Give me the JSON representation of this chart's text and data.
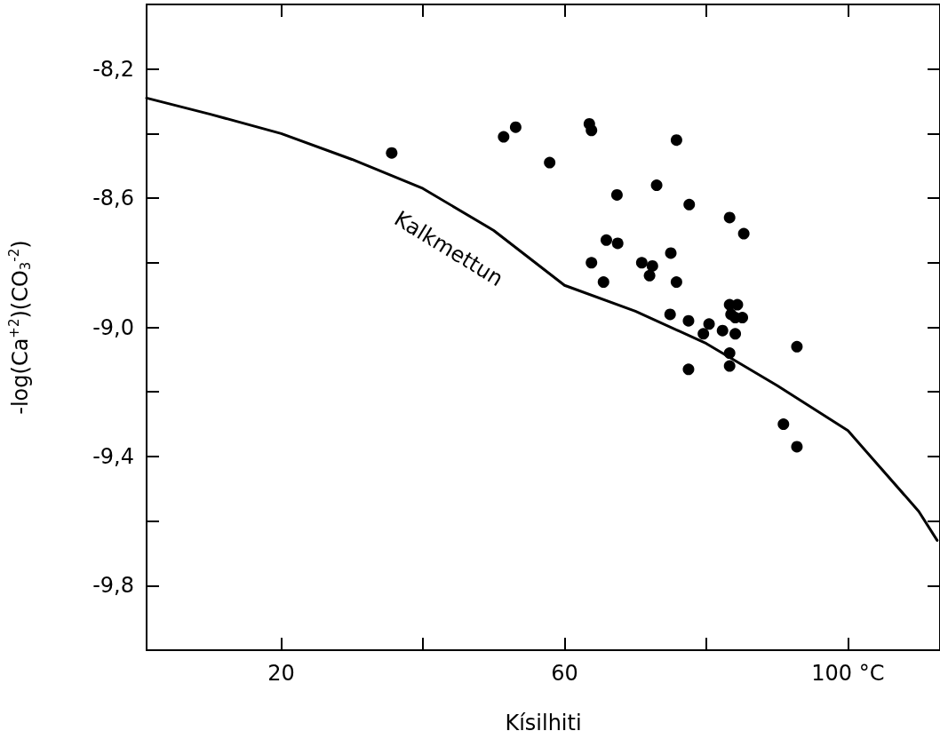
{
  "chart_data": {
    "type": "scatter",
    "xlabel": "Kísilhiti",
    "ylabel": "-log(Ca$^{+2}$)(CO$_{3}$$^{-2}$)",
    "xlim": [
      1,
      113
    ],
    "ylim": [
      -10,
      -8
    ],
    "xticks": [
      20,
      {
        "value": 40,
        "label": null
      },
      60,
      {
        "value": 80,
        "label": null
      },
      {
        "value": 100,
        "label": "100 °C"
      }
    ],
    "yticks": [
      {
        "value": -8.2,
        "label": "-8,2"
      },
      {
        "value": -8.4,
        "label": null
      },
      {
        "value": -8.6,
        "label": "-8,6"
      },
      {
        "value": -8.8,
        "label": null
      },
      {
        "value": -9.0,
        "label": "-9,0"
      },
      {
        "value": -9.2,
        "label": null
      },
      {
        "value": -9.4,
        "label": "-9,4"
      },
      {
        "value": -9.6,
        "label": null
      },
      {
        "value": -9.8,
        "label": "-9,8"
      }
    ],
    "grid": false,
    "marker": "circle",
    "annotations": [
      "Kalkmettun"
    ],
    "series": [
      {
        "color": "#000000",
        "x": [
          35.6,
          51.4,
          53.1,
          57.9,
          63.5,
          63.8,
          75.8,
          73,
          67.4,
          77.6,
          83.3,
          85.3,
          65.9,
          67.5,
          75,
          63.8,
          70.9,
          72.4,
          72,
          65.5,
          75.8,
          83.3,
          84.4,
          83.5,
          84.1,
          85.1,
          74.9,
          77.5,
          80.4,
          82.3,
          79.6,
          84.1,
          83.3,
          83.3,
          77.5,
          92.8,
          90.9,
          92.8
        ],
        "values": [
          -8.46,
          -8.41,
          -8.38,
          -8.49,
          -8.37,
          -8.39,
          -8.42,
          -8.56,
          -8.59,
          -8.62,
          -8.66,
          -8.71,
          -8.73,
          -8.74,
          -8.77,
          -8.8,
          -8.8,
          -8.81,
          -8.84,
          -8.86,
          -8.86,
          -8.93,
          -8.93,
          -8.96,
          -8.97,
          -8.97,
          -8.96,
          -8.98,
          -8.99,
          -9.01,
          -9.02,
          -9.02,
          -9.08,
          -9.12,
          -9.13,
          -9.06,
          -9.3,
          -9.37
        ]
      },
      {
        "type": "line",
        "color": "#000000",
        "marker": "none",
        "line_style": "solid",
        "x": [
          1,
          10,
          20,
          30,
          40,
          50,
          60,
          70,
          80,
          90,
          100,
          110,
          112.6
        ],
        "values": [
          -8.29,
          -8.34,
          -8.4,
          -8.48,
          -8.57,
          -8.7,
          -8.87,
          -8.95,
          -9.05,
          -9.18,
          -9.32,
          -9.57,
          -9.66
        ]
      }
    ]
  }
}
